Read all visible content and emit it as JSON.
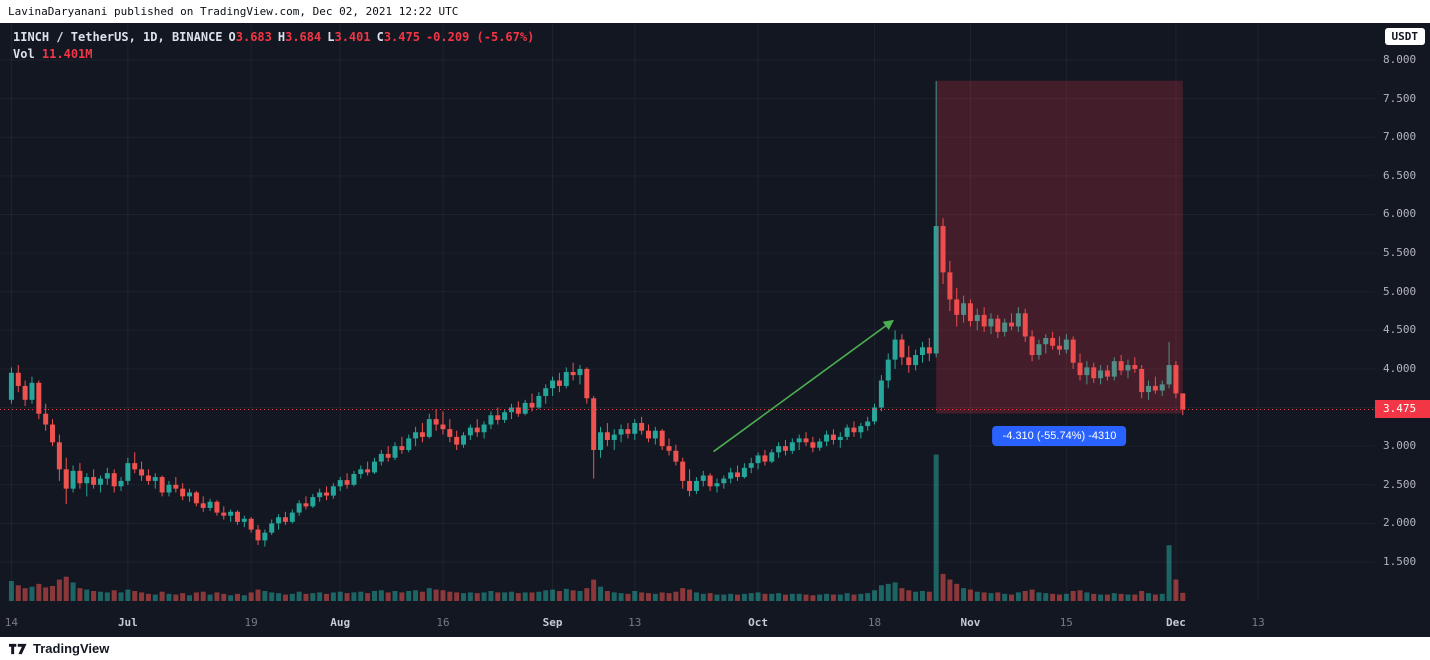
{
  "attribution": "LavinaDaryanani published on TradingView.com, Dec 02, 2021 12:22 UTC",
  "header": {
    "symbol": "1INCH / TetherUS, 1D, BINANCE",
    "ohlc": [
      {
        "k": "O",
        "v": "3.683"
      },
      {
        "k": "H",
        "v": "3.684"
      },
      {
        "k": "L",
        "v": "3.401"
      },
      {
        "k": "C",
        "v": "3.475"
      }
    ],
    "change": "-0.209 (-5.67%)",
    "vol_label": "Vol",
    "vol_value": "11.401M",
    "unit_badge": "USDT"
  },
  "price_axis": {
    "ticks": [
      8.0,
      7.5,
      7.0,
      6.5,
      6.0,
      5.5,
      5.0,
      4.5,
      4.0,
      3.5,
      3.0,
      2.5,
      2.0,
      1.5
    ],
    "last_price_label": "3.475"
  },
  "time_axis": {
    "labels": [
      {
        "text": "14",
        "i": 0,
        "minor": true
      },
      {
        "text": "Jul",
        "i": 17
      },
      {
        "text": "19",
        "i": 35,
        "minor": true
      },
      {
        "text": "Aug",
        "i": 48
      },
      {
        "text": "16",
        "i": 63,
        "minor": true
      },
      {
        "text": "Sep",
        "i": 79
      },
      {
        "text": "13",
        "i": 91,
        "minor": true
      },
      {
        "text": "Oct",
        "i": 109
      },
      {
        "text": "18",
        "i": 126,
        "minor": true
      },
      {
        "text": "Nov",
        "i": 140
      },
      {
        "text": "15",
        "i": 154,
        "minor": true
      },
      {
        "text": "Dec",
        "i": 170
      },
      {
        "text": "13",
        "i": 182,
        "minor": true
      }
    ]
  },
  "chart_data": {
    "type": "candlestick",
    "title": "1INCH / TetherUS, 1D, BINANCE",
    "interval": "1D",
    "start_date": "2021-06-14",
    "ylim": [
      1.1,
      8.2
    ],
    "last_price": 3.475,
    "colors": {
      "up": "#26a69a",
      "down": "#ef5350",
      "accent_blue": "#2962ff",
      "price_line": "#f23645",
      "box_fill": "rgba(242,54,69,0.22)",
      "arrow": "#4caf50",
      "background": "#131722"
    },
    "range_box": {
      "start_index": 135,
      "end_index": 171,
      "top": 7.732,
      "bottom": 3.422,
      "label": "-4.310 (-55.74%) -4310"
    },
    "arrow": {
      "from_index": 102.5,
      "from_price": 2.93,
      "to_index": 128.6,
      "to_price": 4.62
    },
    "candles_ohlcv": [
      [
        3.6,
        4.02,
        3.55,
        3.95,
        28
      ],
      [
        3.95,
        4.05,
        3.7,
        3.78,
        22
      ],
      [
        3.78,
        3.85,
        3.52,
        3.6,
        18
      ],
      [
        3.6,
        3.9,
        3.55,
        3.82,
        20
      ],
      [
        3.82,
        3.85,
        3.35,
        3.42,
        24
      ],
      [
        3.42,
        3.55,
        3.2,
        3.28,
        19
      ],
      [
        3.28,
        3.35,
        3.0,
        3.05,
        21
      ],
      [
        3.05,
        3.15,
        2.55,
        2.7,
        30
      ],
      [
        2.7,
        2.85,
        2.25,
        2.45,
        34
      ],
      [
        2.45,
        2.75,
        2.4,
        2.68,
        26
      ],
      [
        2.68,
        2.78,
        2.45,
        2.52,
        18
      ],
      [
        2.52,
        2.65,
        2.35,
        2.6,
        16
      ],
      [
        2.6,
        2.7,
        2.45,
        2.5,
        14
      ],
      [
        2.5,
        2.62,
        2.4,
        2.58,
        13
      ],
      [
        2.58,
        2.72,
        2.5,
        2.65,
        12
      ],
      [
        2.65,
        2.7,
        2.4,
        2.48,
        15
      ],
      [
        2.48,
        2.6,
        2.42,
        2.55,
        12
      ],
      [
        2.55,
        2.85,
        2.5,
        2.78,
        16
      ],
      [
        2.78,
        2.92,
        2.65,
        2.7,
        14
      ],
      [
        2.7,
        2.8,
        2.55,
        2.62,
        12
      ],
      [
        2.62,
        2.7,
        2.5,
        2.55,
        10
      ],
      [
        2.55,
        2.65,
        2.45,
        2.6,
        9
      ],
      [
        2.6,
        2.62,
        2.35,
        2.4,
        13
      ],
      [
        2.4,
        2.55,
        2.35,
        2.5,
        10
      ],
      [
        2.5,
        2.6,
        2.4,
        2.45,
        9
      ],
      [
        2.45,
        2.52,
        2.3,
        2.35,
        11
      ],
      [
        2.35,
        2.45,
        2.28,
        2.4,
        8
      ],
      [
        2.4,
        2.42,
        2.22,
        2.26,
        12
      ],
      [
        2.26,
        2.35,
        2.15,
        2.2,
        13
      ],
      [
        2.2,
        2.32,
        2.16,
        2.28,
        9
      ],
      [
        2.28,
        2.3,
        2.1,
        2.14,
        12
      ],
      [
        2.14,
        2.22,
        2.05,
        2.1,
        10
      ],
      [
        2.1,
        2.18,
        2.02,
        2.15,
        8
      ],
      [
        2.15,
        2.17,
        1.98,
        2.02,
        10
      ],
      [
        2.02,
        2.1,
        1.95,
        2.06,
        8
      ],
      [
        2.06,
        2.08,
        1.88,
        1.92,
        12
      ],
      [
        1.92,
        1.98,
        1.72,
        1.78,
        16
      ],
      [
        1.78,
        1.92,
        1.7,
        1.88,
        14
      ],
      [
        1.88,
        2.05,
        1.85,
        2.0,
        12
      ],
      [
        2.0,
        2.12,
        1.92,
        2.08,
        11
      ],
      [
        2.08,
        2.15,
        1.98,
        2.02,
        9
      ],
      [
        2.02,
        2.18,
        2.0,
        2.14,
        10
      ],
      [
        2.14,
        2.3,
        2.1,
        2.26,
        13
      ],
      [
        2.26,
        2.35,
        2.18,
        2.22,
        10
      ],
      [
        2.22,
        2.38,
        2.2,
        2.34,
        11
      ],
      [
        2.34,
        2.45,
        2.28,
        2.4,
        12
      ],
      [
        2.4,
        2.48,
        2.3,
        2.36,
        10
      ],
      [
        2.36,
        2.52,
        2.32,
        2.48,
        12
      ],
      [
        2.48,
        2.6,
        2.42,
        2.56,
        13
      ],
      [
        2.56,
        2.65,
        2.45,
        2.5,
        11
      ],
      [
        2.5,
        2.68,
        2.48,
        2.64,
        12
      ],
      [
        2.64,
        2.75,
        2.58,
        2.7,
        13
      ],
      [
        2.7,
        2.8,
        2.62,
        2.66,
        11
      ],
      [
        2.66,
        2.85,
        2.64,
        2.8,
        14
      ],
      [
        2.8,
        2.95,
        2.75,
        2.9,
        15
      ],
      [
        2.9,
        3.0,
        2.8,
        2.85,
        12
      ],
      [
        2.85,
        3.05,
        2.82,
        3.0,
        14
      ],
      [
        3.0,
        3.12,
        2.9,
        2.95,
        12
      ],
      [
        2.95,
        3.15,
        2.92,
        3.1,
        14
      ],
      [
        3.1,
        3.25,
        3.0,
        3.18,
        15
      ],
      [
        3.18,
        3.3,
        3.05,
        3.12,
        13
      ],
      [
        3.12,
        3.42,
        3.1,
        3.35,
        18
      ],
      [
        3.35,
        3.48,
        3.2,
        3.28,
        16
      ],
      [
        3.28,
        3.45,
        3.15,
        3.22,
        15
      ],
      [
        3.22,
        3.35,
        3.05,
        3.12,
        13
      ],
      [
        3.12,
        3.2,
        2.95,
        3.02,
        12
      ],
      [
        3.02,
        3.18,
        2.98,
        3.14,
        11
      ],
      [
        3.14,
        3.28,
        3.08,
        3.24,
        12
      ],
      [
        3.24,
        3.35,
        3.12,
        3.18,
        11
      ],
      [
        3.18,
        3.32,
        3.1,
        3.28,
        12
      ],
      [
        3.28,
        3.45,
        3.22,
        3.4,
        14
      ],
      [
        3.4,
        3.5,
        3.28,
        3.34,
        12
      ],
      [
        3.34,
        3.48,
        3.3,
        3.44,
        12
      ],
      [
        3.44,
        3.55,
        3.35,
        3.5,
        13
      ],
      [
        3.5,
        3.58,
        3.38,
        3.42,
        11
      ],
      [
        3.42,
        3.6,
        3.4,
        3.56,
        12
      ],
      [
        3.56,
        3.68,
        3.45,
        3.5,
        12
      ],
      [
        3.5,
        3.7,
        3.48,
        3.65,
        13
      ],
      [
        3.65,
        3.8,
        3.55,
        3.75,
        15
      ],
      [
        3.75,
        3.9,
        3.65,
        3.85,
        16
      ],
      [
        3.85,
        3.95,
        3.7,
        3.78,
        14
      ],
      [
        3.78,
        4.02,
        3.75,
        3.96,
        17
      ],
      [
        3.96,
        4.08,
        3.85,
        3.92,
        15
      ],
      [
        3.92,
        4.05,
        3.8,
        4.0,
        14
      ],
      [
        4.0,
        4.02,
        3.55,
        3.62,
        18
      ],
      [
        3.62,
        3.65,
        2.58,
        2.95,
        30
      ],
      [
        2.95,
        3.25,
        2.85,
        3.18,
        20
      ],
      [
        3.18,
        3.3,
        3.0,
        3.08,
        14
      ],
      [
        3.08,
        3.22,
        2.95,
        3.15,
        12
      ],
      [
        3.15,
        3.28,
        3.05,
        3.22,
        11
      ],
      [
        3.22,
        3.3,
        3.1,
        3.16,
        10
      ],
      [
        3.16,
        3.35,
        3.08,
        3.3,
        14
      ],
      [
        3.3,
        3.38,
        3.15,
        3.2,
        12
      ],
      [
        3.2,
        3.28,
        3.05,
        3.1,
        11
      ],
      [
        3.1,
        3.25,
        3.02,
        3.2,
        10
      ],
      [
        3.2,
        3.22,
        2.95,
        3.0,
        12
      ],
      [
        3.0,
        3.1,
        2.88,
        2.94,
        11
      ],
      [
        2.94,
        3.02,
        2.75,
        2.8,
        13
      ],
      [
        2.8,
        2.85,
        2.45,
        2.55,
        18
      ],
      [
        2.55,
        2.7,
        2.35,
        2.42,
        16
      ],
      [
        2.42,
        2.6,
        2.38,
        2.55,
        12
      ],
      [
        2.55,
        2.68,
        2.48,
        2.62,
        10
      ],
      [
        2.62,
        2.65,
        2.42,
        2.48,
        11
      ],
      [
        2.48,
        2.58,
        2.4,
        2.52,
        9
      ],
      [
        2.52,
        2.62,
        2.45,
        2.58,
        9
      ],
      [
        2.58,
        2.72,
        2.52,
        2.66,
        10
      ],
      [
        2.66,
        2.75,
        2.55,
        2.6,
        9
      ],
      [
        2.6,
        2.78,
        2.58,
        2.72,
        10
      ],
      [
        2.72,
        2.85,
        2.65,
        2.78,
        11
      ],
      [
        2.78,
        2.92,
        2.7,
        2.88,
        12
      ],
      [
        2.88,
        2.95,
        2.75,
        2.8,
        10
      ],
      [
        2.8,
        2.96,
        2.78,
        2.92,
        10
      ],
      [
        2.92,
        3.05,
        2.85,
        3.0,
        11
      ],
      [
        3.0,
        3.08,
        2.88,
        2.94,
        9
      ],
      [
        2.94,
        3.1,
        2.9,
        3.05,
        10
      ],
      [
        3.05,
        3.15,
        2.95,
        3.1,
        10
      ],
      [
        3.1,
        3.18,
        3.0,
        3.05,
        9
      ],
      [
        3.05,
        3.12,
        2.92,
        2.98,
        8
      ],
      [
        2.98,
        3.1,
        2.94,
        3.06,
        9
      ],
      [
        3.06,
        3.2,
        3.0,
        3.15,
        10
      ],
      [
        3.15,
        3.22,
        3.02,
        3.08,
        9
      ],
      [
        3.08,
        3.18,
        2.98,
        3.12,
        9
      ],
      [
        3.12,
        3.28,
        3.08,
        3.24,
        11
      ],
      [
        3.24,
        3.32,
        3.12,
        3.18,
        9
      ],
      [
        3.18,
        3.3,
        3.1,
        3.26,
        10
      ],
      [
        3.26,
        3.38,
        3.2,
        3.32,
        11
      ],
      [
        3.32,
        3.55,
        3.28,
        3.5,
        15
      ],
      [
        3.5,
        3.92,
        3.45,
        3.85,
        22
      ],
      [
        3.85,
        4.2,
        3.75,
        4.12,
        24
      ],
      [
        4.12,
        4.5,
        4.0,
        4.38,
        26
      ],
      [
        4.38,
        4.45,
        4.05,
        4.15,
        18
      ],
      [
        4.15,
        4.3,
        3.95,
        4.05,
        15
      ],
      [
        4.05,
        4.25,
        3.98,
        4.18,
        13
      ],
      [
        4.18,
        4.35,
        4.08,
        4.28,
        14
      ],
      [
        4.28,
        4.4,
        4.1,
        4.2,
        13
      ],
      [
        4.2,
        7.73,
        4.15,
        5.85,
        205
      ],
      [
        5.85,
        5.95,
        5.1,
        5.25,
        38
      ],
      [
        5.25,
        5.4,
        4.75,
        4.9,
        30
      ],
      [
        4.9,
        5.05,
        4.55,
        4.7,
        24
      ],
      [
        4.7,
        4.95,
        4.6,
        4.85,
        18
      ],
      [
        4.85,
        4.9,
        4.55,
        4.62,
        16
      ],
      [
        4.62,
        4.78,
        4.5,
        4.7,
        13
      ],
      [
        4.7,
        4.8,
        4.48,
        4.55,
        12
      ],
      [
        4.55,
        4.72,
        4.45,
        4.65,
        11
      ],
      [
        4.65,
        4.7,
        4.4,
        4.48,
        12
      ],
      [
        4.48,
        4.65,
        4.42,
        4.6,
        10
      ],
      [
        4.6,
        4.72,
        4.5,
        4.55,
        9
      ],
      [
        4.55,
        4.8,
        4.48,
        4.72,
        12
      ],
      [
        4.72,
        4.78,
        4.35,
        4.42,
        14
      ],
      [
        4.42,
        4.5,
        4.1,
        4.18,
        16
      ],
      [
        4.18,
        4.38,
        4.12,
        4.32,
        12
      ],
      [
        4.32,
        4.45,
        4.2,
        4.4,
        11
      ],
      [
        4.4,
        4.48,
        4.25,
        4.3,
        10
      ],
      [
        4.3,
        4.42,
        4.18,
        4.25,
        9
      ],
      [
        4.25,
        4.45,
        4.2,
        4.38,
        10
      ],
      [
        4.38,
        4.42,
        4.0,
        4.08,
        14
      ],
      [
        4.08,
        4.2,
        3.85,
        3.92,
        15
      ],
      [
        3.92,
        4.1,
        3.8,
        4.02,
        12
      ],
      [
        4.02,
        4.08,
        3.82,
        3.88,
        10
      ],
      [
        3.88,
        4.05,
        3.8,
        3.98,
        9
      ],
      [
        3.98,
        4.05,
        3.85,
        3.9,
        9
      ],
      [
        3.9,
        4.15,
        3.85,
        4.1,
        11
      ],
      [
        4.1,
        4.18,
        3.92,
        3.98,
        10
      ],
      [
        3.98,
        4.12,
        3.88,
        4.05,
        9
      ],
      [
        4.05,
        4.15,
        3.95,
        4.0,
        9
      ],
      [
        4.0,
        4.05,
        3.62,
        3.7,
        14
      ],
      [
        3.7,
        3.85,
        3.6,
        3.78,
        11
      ],
      [
        3.78,
        3.9,
        3.68,
        3.72,
        9
      ],
      [
        3.72,
        3.85,
        3.65,
        3.8,
        10
      ],
      [
        3.8,
        4.35,
        3.75,
        4.05,
        78
      ],
      [
        4.05,
        4.1,
        3.62,
        3.683,
        30
      ],
      [
        3.683,
        3.684,
        3.401,
        3.475,
        11.401
      ]
    ]
  },
  "footer": {
    "logo_text": "TradingView"
  }
}
